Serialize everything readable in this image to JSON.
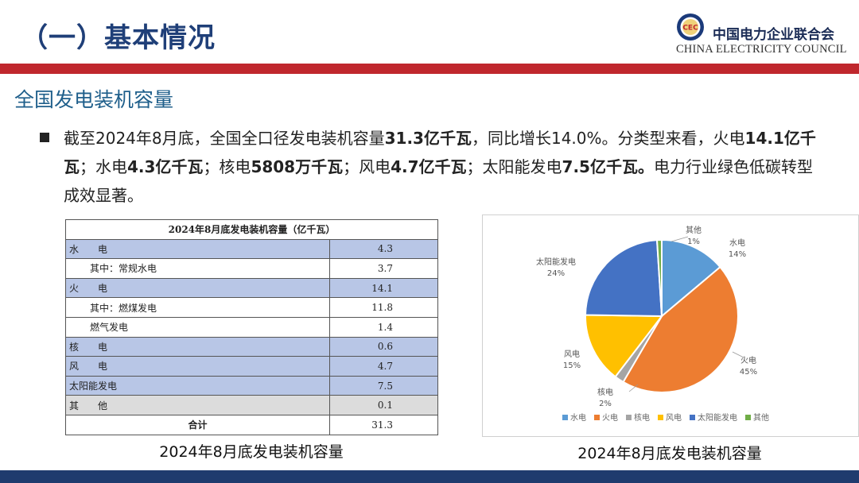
{
  "header": {
    "title": "（一）基本情况",
    "org_cn": "中国电力企业联合会",
    "org_en": "CHINA ELECTRICITY COUNCIL",
    "logo_text": "CEC"
  },
  "section": {
    "subtitle": "全国发电装机容量"
  },
  "bullet": {
    "t1": "截至2024年8月底，全国全口径发电装机容量",
    "b1": "31.3亿千瓦",
    "t2": "，同比增长14.0%。分类型来看，火电",
    "b2": "14.1亿千瓦",
    "t3": "；水电",
    "b3": "4.3亿千瓦",
    "t4": "；核电",
    "b4": "5808万千瓦",
    "t5": "；风电",
    "b5": "4.7亿千瓦",
    "t6": "；太阳能发电",
    "b6": "7.5亿千瓦。",
    "t7": "电力行业绿色低碳转型成效显著。"
  },
  "table": {
    "header": "2024年8月底发电装机容量（亿千瓦）",
    "rows": [
      {
        "label": "水　　电",
        "value": "4.3",
        "style": "blue"
      },
      {
        "label": "其中：常规水电",
        "value": "3.7",
        "style": "sub"
      },
      {
        "label": "火　　电",
        "value": "14.1",
        "style": "blue"
      },
      {
        "label": "其中：燃煤发电",
        "value": "11.8",
        "style": "sub"
      },
      {
        "label": "燃气发电",
        "value": "1.4",
        "style": "sub"
      },
      {
        "label": "核　　电",
        "value": "0.6",
        "style": "blue"
      },
      {
        "label": "风　　电",
        "value": "4.7",
        "style": "blue"
      },
      {
        "label": "太阳能发电",
        "value": "7.5",
        "style": "blue"
      },
      {
        "label": "其　　他",
        "value": "0.1",
        "style": "gray"
      },
      {
        "label": "合计",
        "value": "31.3",
        "style": "total"
      }
    ],
    "caption": "2024年8月底发电装机容量"
  },
  "chart_data": {
    "type": "pie",
    "title": "",
    "caption": "2024年8月底发电装机容量",
    "slices": [
      {
        "label": "水电",
        "value": 14,
        "pct": "14%",
        "color": "#5b9bd5"
      },
      {
        "label": "火电",
        "value": 45,
        "pct": "45%",
        "color": "#ed7d31"
      },
      {
        "label": "核电",
        "value": 2,
        "pct": "2%",
        "color": "#a5a5a5"
      },
      {
        "label": "风电",
        "value": 15,
        "pct": "15%",
        "color": "#ffc000"
      },
      {
        "label": "太阳能发电",
        "value": 24,
        "pct": "24%",
        "color": "#4472c4"
      },
      {
        "label": "其他",
        "value": 1,
        "pct": "1%",
        "color": "#70ad47"
      }
    ],
    "legend_position": "bottom"
  },
  "colors": {
    "title": "#1f3f78",
    "red_bar": "#c0272d",
    "bottom_bar": "#1f3b6e",
    "table_blue": "#b8c6e6",
    "table_gray": "#dcdcdc"
  }
}
